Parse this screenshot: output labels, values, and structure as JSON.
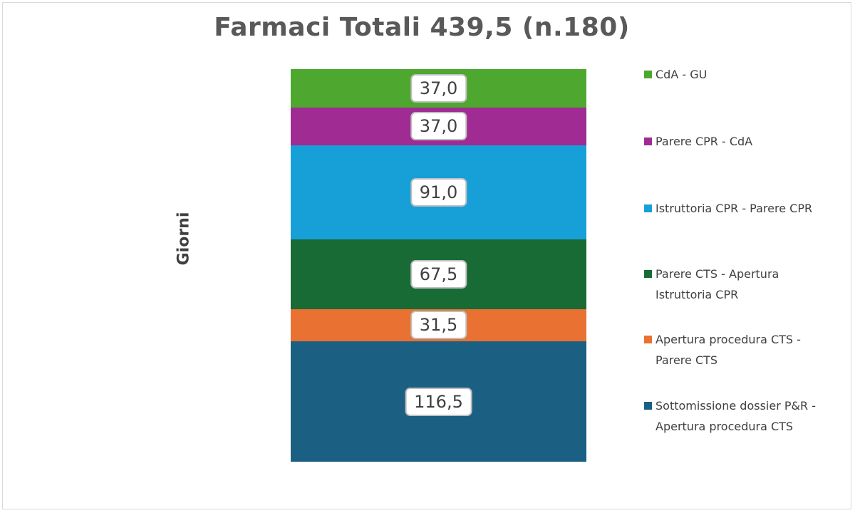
{
  "chart_data": {
    "type": "bar",
    "stacked": true,
    "title": "Farmaci Totali 439,5 (n.180)",
    "ylabel": "Giorni",
    "xlabel": "",
    "categories": [
      ""
    ],
    "total": 439.5,
    "legend_position": "right",
    "grid": false,
    "series": [
      {
        "name": "Sottomissione dossier P&R - Apertura procedura CTS",
        "values": [
          116.5
        ],
        "label": "116,5",
        "color": "#1b5f82"
      },
      {
        "name": "Apertura procedura CTS - Parere CTS",
        "values": [
          31.5
        ],
        "label": "31,5",
        "color": "#e97132"
      },
      {
        "name": "Parere CTS - Apertura Istruttoria CPR",
        "values": [
          67.5
        ],
        "label": "67,5",
        "color": "#196b35"
      },
      {
        "name": "Istruttoria CPR - Parere CPR",
        "values": [
          91.0
        ],
        "label": "91,0",
        "color": "#179fd8"
      },
      {
        "name": "Parere CPR - CdA",
        "values": [
          37.0
        ],
        "label": "37,0",
        "color": "#a02b93"
      },
      {
        "name": "CdA - GU",
        "values": [
          37.0
        ],
        "label": "37,0",
        "color": "#4ea72e"
      }
    ]
  }
}
